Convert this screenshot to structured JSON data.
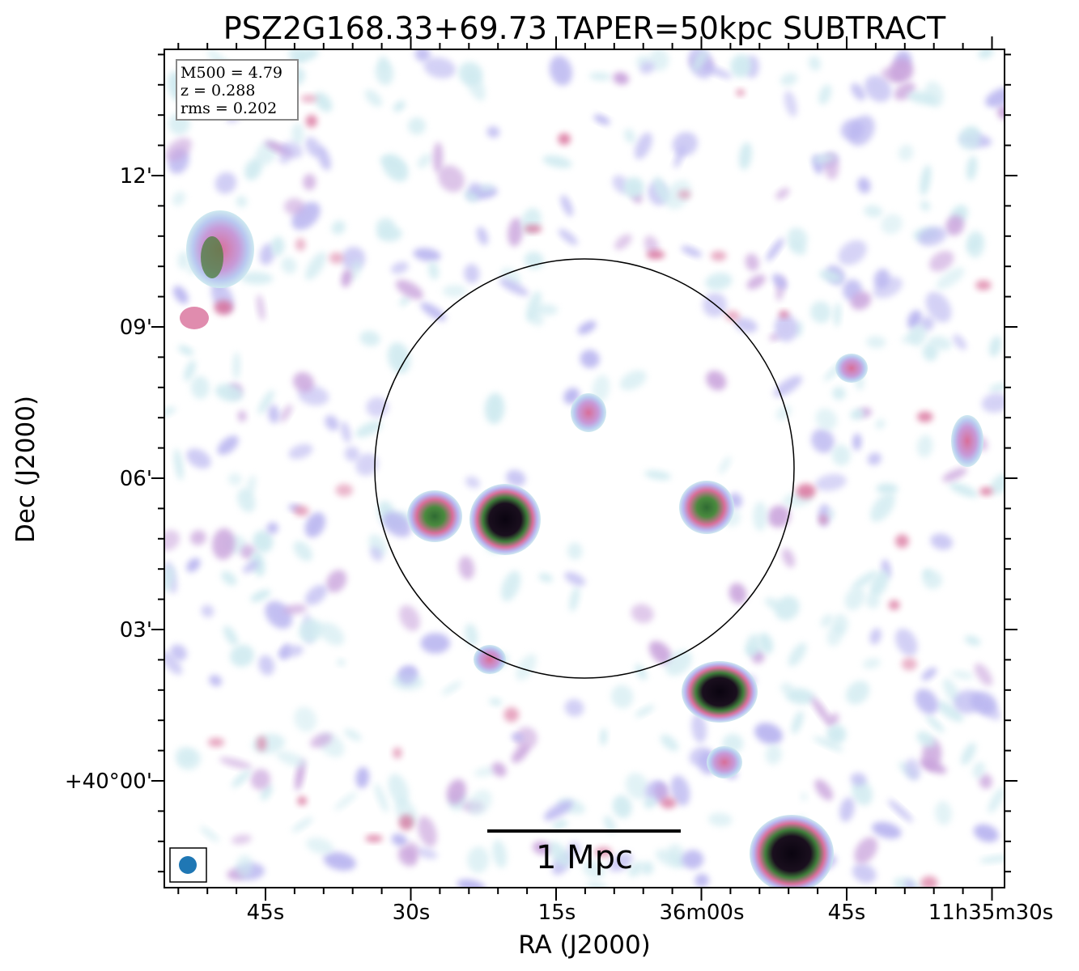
{
  "title": "PSZ2G168.33+69.73 TAPER=50kpc SUBTRACT",
  "info": {
    "line1": "M500 = 4.79",
    "line2": "z = 0.288",
    "line3": "rms = 0.202"
  },
  "axes": {
    "xlabel": "RA (J2000)",
    "ylabel": "Dec (J2000)",
    "xticks": [
      "45s",
      "30s",
      "15s",
      "36m00s",
      "45s",
      "11h35m30s"
    ],
    "yticks": [
      "12'",
      "09'",
      "06'",
      "03'",
      "+40°00'"
    ]
  },
  "scalebar": {
    "label": "1 Mpc"
  },
  "colors": {
    "low": "#cfeaf0",
    "lavender": "#b9b5f0",
    "pink": "#d86f9a",
    "green": "#3f7d3a",
    "core": "#0a0410",
    "beam": "#1f77b4"
  }
}
